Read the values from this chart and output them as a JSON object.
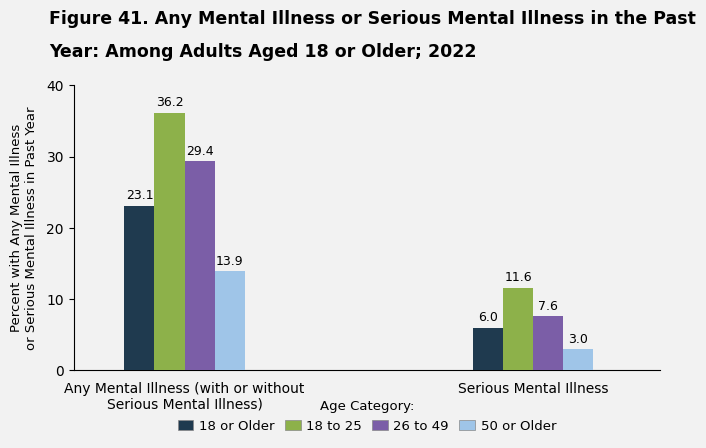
{
  "title_line1": "Figure 41. Any Mental Illness or Serious Mental Illness in the Past",
  "title_line2": "Year: Among Adults Aged 18 or Older; 2022",
  "ylabel": "Percent with Any Mental Illness\nor Serious Mental Illness in Past Year",
  "categories": [
    "Any Mental Illness (with or without\nSerious Mental Illness)",
    "Serious Mental Illness"
  ],
  "legend_labels": [
    "18 or Older",
    "18 to 25",
    "26 to 49",
    "50 or Older"
  ],
  "bar_colors": [
    "#1f3a4f",
    "#8db14a",
    "#7b5ea7",
    "#9fc5e8"
  ],
  "values": [
    [
      23.1,
      36.2,
      29.4,
      13.9
    ],
    [
      6.0,
      11.6,
      7.6,
      3.0
    ]
  ],
  "ylim": [
    0,
    40
  ],
  "yticks": [
    0,
    10,
    20,
    30,
    40
  ],
  "bar_width": 0.19,
  "group_positions": [
    1.0,
    3.2
  ],
  "background_color": "#f2f2f2",
  "title_fontsize": 12.5,
  "axis_label_fontsize": 9.5,
  "tick_fontsize": 10,
  "legend_fontsize": 9.5,
  "value_fontsize": 9
}
